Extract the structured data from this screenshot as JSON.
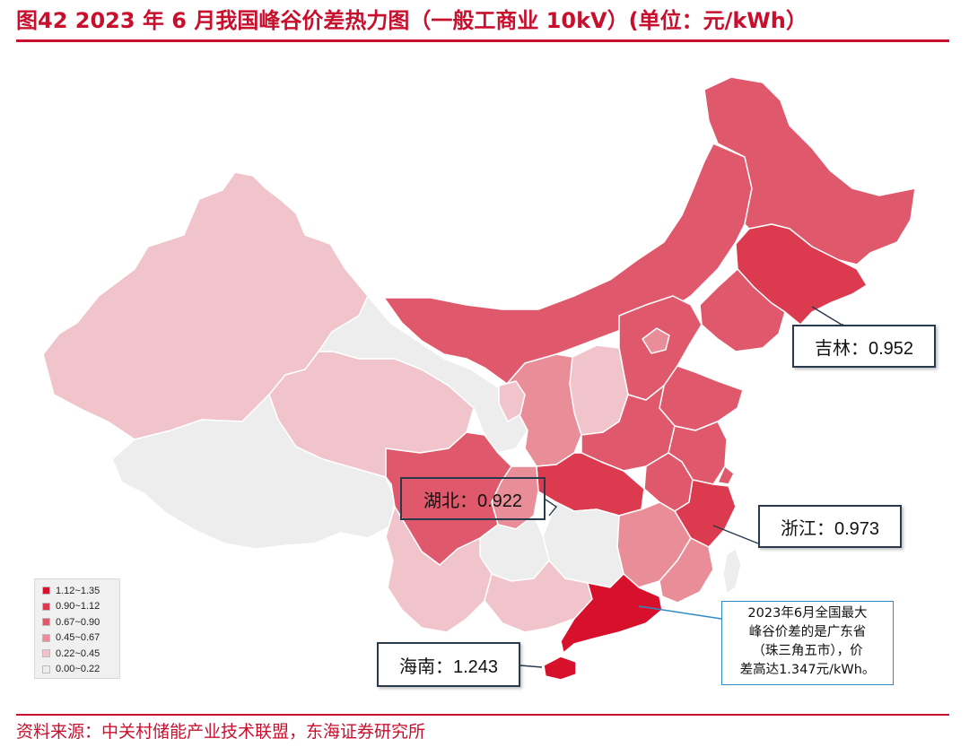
{
  "title": "图42  2023 年 6 月我国峰谷价差热力图（一般工商业 10kV）(单位：元/kWh）",
  "source": "资料来源：中关村储能产业技术联盟，东海证券研究所",
  "colors": {
    "accent": "#c8102e",
    "bin_1_12_1_35": "#d7102c",
    "bin_0_90_1_12": "#dc3a4e",
    "bin_0_67_0_90": "#e0586b",
    "bin_0_45_0_67": "#e98e99",
    "bin_0_22_0_45": "#f0c4ca",
    "bin_0_00_0_22": "#ededed"
  },
  "legend": {
    "items": [
      {
        "label": "1.12~1.35",
        "color": "#d7102c"
      },
      {
        "label": "0.90~1.12",
        "color": "#dc3a4e"
      },
      {
        "label": "0.67~0.90",
        "color": "#e0586b"
      },
      {
        "label": "0.45~0.67",
        "color": "#e98e99"
      },
      {
        "label": "0.22~0.45",
        "color": "#f0c4ca"
      },
      {
        "label": "0.00~0.22",
        "color": "#ededed"
      }
    ]
  },
  "callouts": {
    "jilin": "吉林：0.952",
    "hubei": "湖北：0.922",
    "zhejiang": "浙江：0.973",
    "hainan": "海南：1.243"
  },
  "note": {
    "lines": [
      "2023年6月全国最大",
      "峰谷价差的是广东省",
      "（珠三角五市），价",
      "差高达1.347元/kWh。"
    ]
  },
  "provinces": [
    {
      "name": "吉林",
      "value": 0.952
    },
    {
      "name": "湖北",
      "value": 0.922
    },
    {
      "name": "浙江",
      "value": 0.973
    },
    {
      "name": "海南",
      "value": 1.243
    },
    {
      "name": "广东（珠三角五市）",
      "value": 1.347
    }
  ]
}
